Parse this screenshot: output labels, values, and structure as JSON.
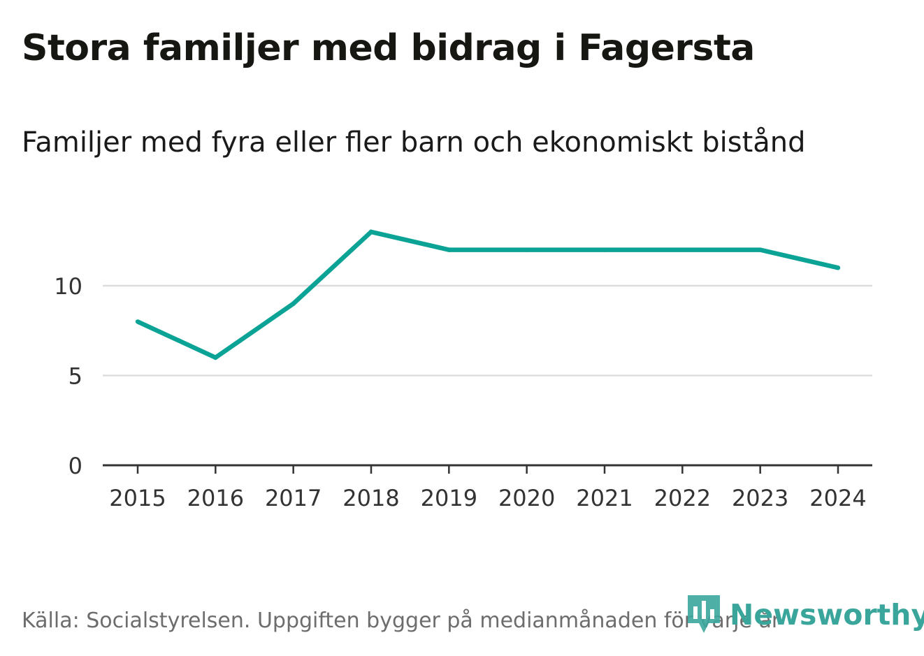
{
  "header": {
    "title": "Stora familjer med bidrag i Fagersta",
    "subtitle": "Familjer med fyra eller fler barn och ekonomiskt bistånd"
  },
  "footer": {
    "source": "Källa: Socialstyrelsen. Uppgiften bygger på medianmånaden för varje år",
    "brand": "Newsworthy"
  },
  "colors": {
    "line": "#0aa396",
    "grid": "#dddddd",
    "axis": "#333333",
    "brand": "#3aa69b"
  },
  "chart_data": {
    "type": "line",
    "title": "Stora familjer med bidrag i Fagersta",
    "subtitle": "Familjer med fyra eller fler barn och ekonomiskt bistånd",
    "xlabel": "",
    "ylabel": "",
    "categories": [
      "2015",
      "2016",
      "2017",
      "2018",
      "2019",
      "2020",
      "2021",
      "2022",
      "2023",
      "2024"
    ],
    "series": [
      {
        "name": "Familjer med fyra eller fler barn och ekonomiskt bistånd",
        "values": [
          8,
          6,
          9,
          13,
          12,
          12,
          12,
          12,
          12,
          11
        ]
      }
    ],
    "yticks": [
      0,
      5,
      10
    ],
    "ylim": [
      0,
      14
    ],
    "grid": true,
    "legend": "none"
  }
}
